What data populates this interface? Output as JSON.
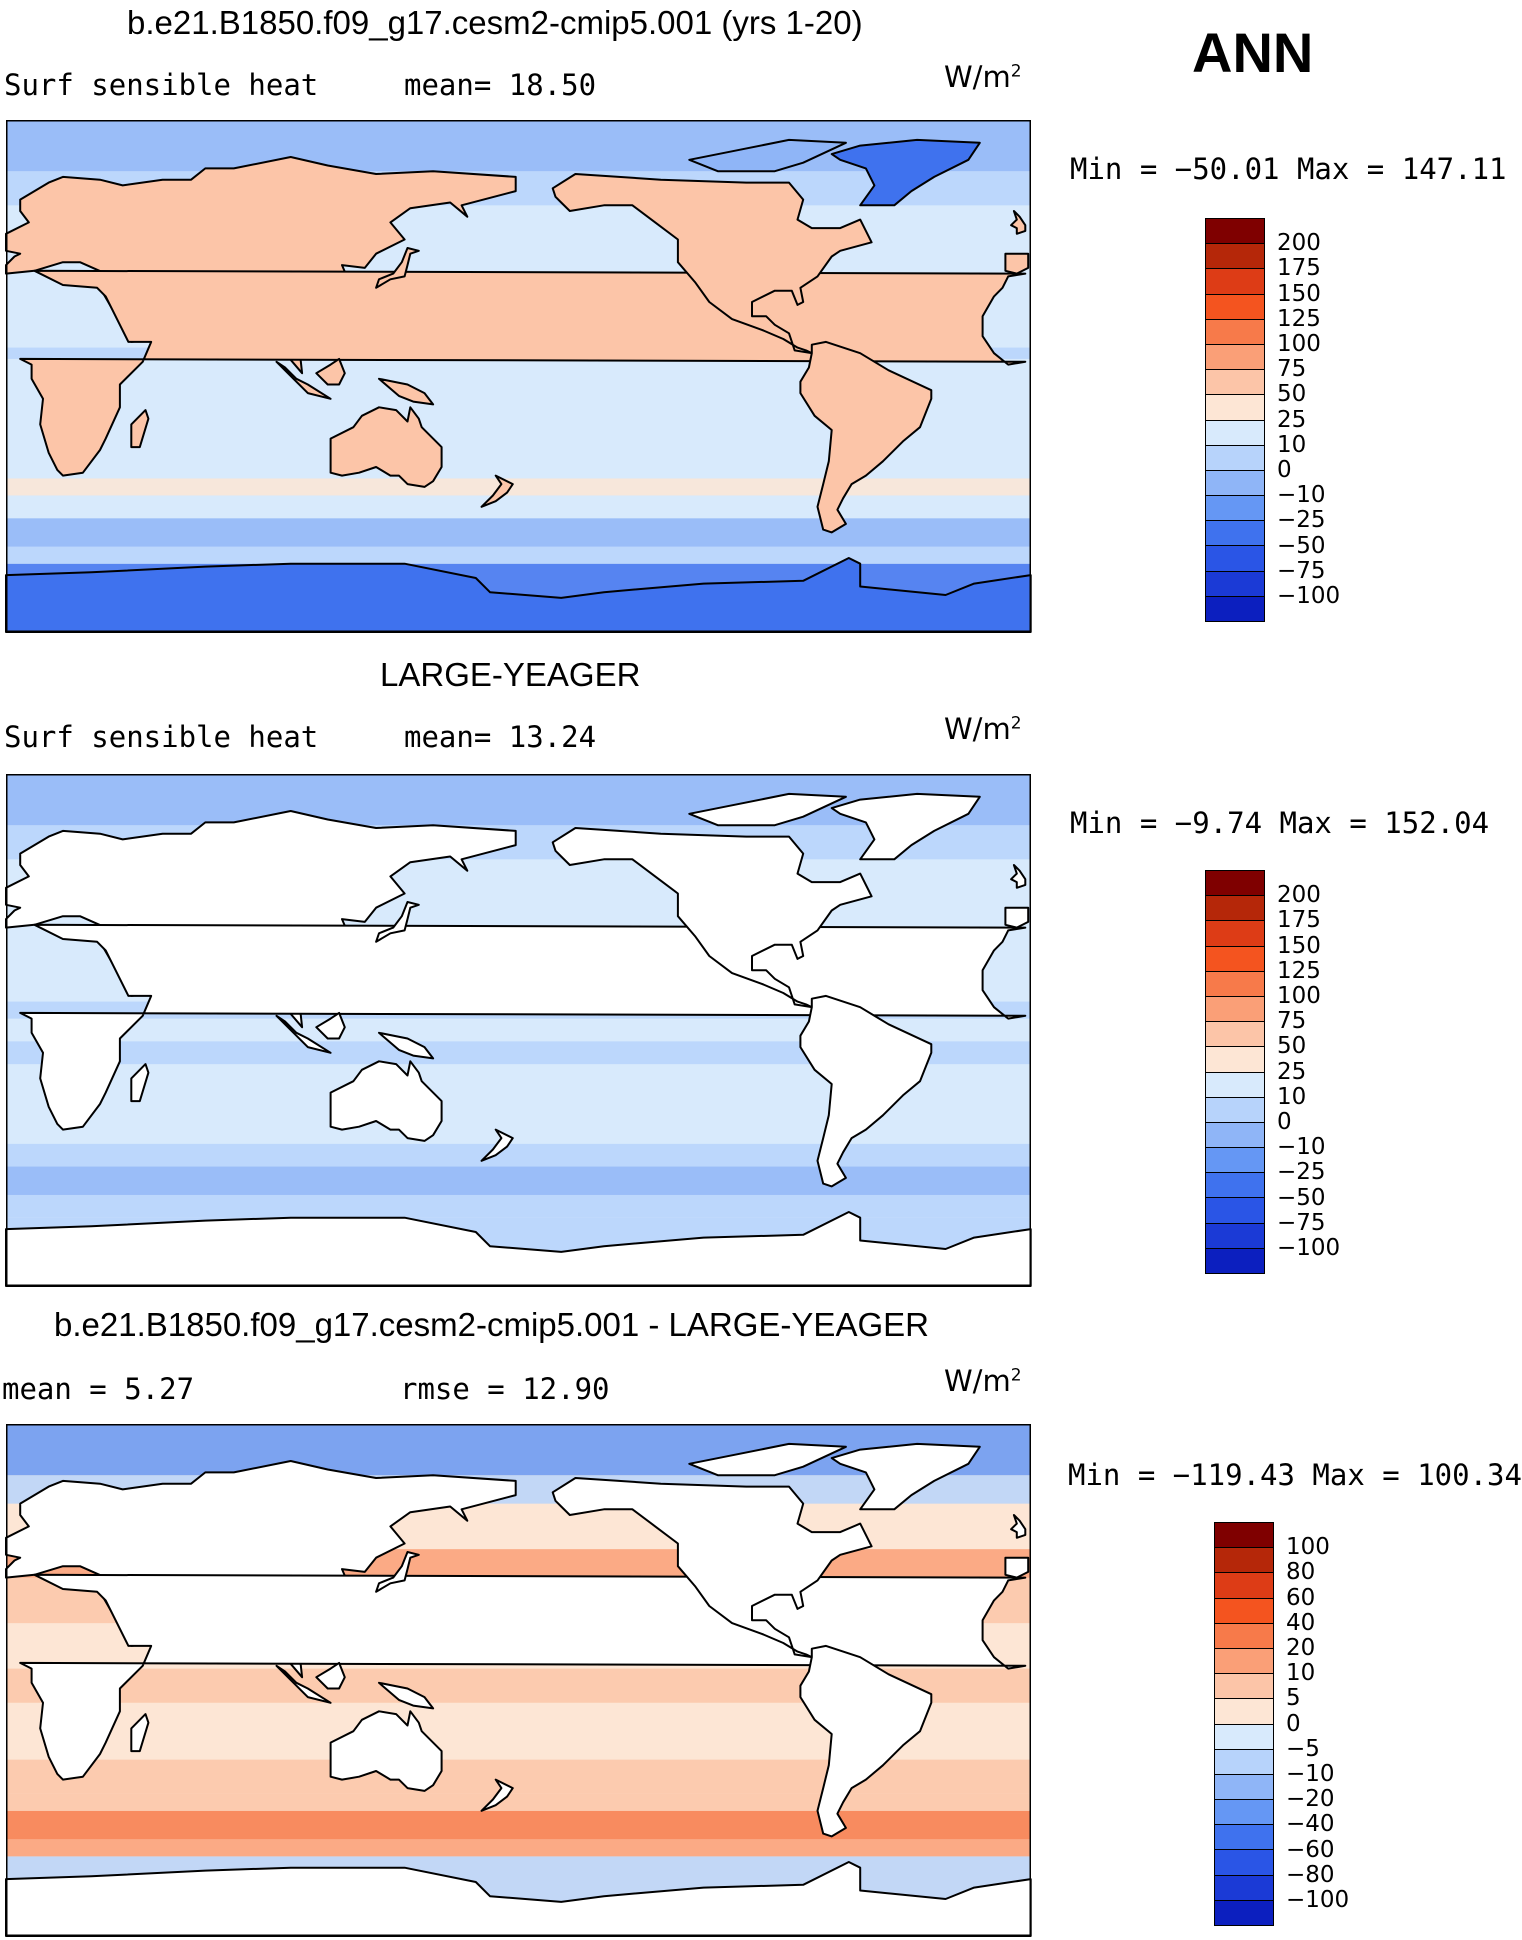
{
  "season": "ANN",
  "colors": {
    "pos": [
      "#7f0000",
      "#b52709",
      "#dd3c16",
      "#f4541f",
      "#f77a4a",
      "#fa9f77",
      "#fcc5a8",
      "#fde6d5"
    ],
    "neg": [
      "#d8eafc",
      "#b7d3fb",
      "#8fb5f7",
      "#6597f4",
      "#3f72ee",
      "#2a55e6",
      "#1b3ad6",
      "#0c1fbf",
      "#020f8c"
    ],
    "land": "#ffffff",
    "coast": "#000000"
  },
  "panels": [
    {
      "title": "b.e21.B1850.f09_g17.cesm2-cmip5.001 (yrs 1-20)",
      "stat_left": "Surf sensible heat",
      "stat_right": "mean=   18.50",
      "unit": "W/m",
      "unit_sup": "2",
      "minmax": "Min  =  −50.01  Max  =  147.11",
      "levels": [
        "200",
        "175",
        "150",
        "125",
        "100",
        "75",
        "50",
        "25",
        "10",
        "0",
        "−10",
        "−25",
        "−50",
        "−75",
        "−100"
      ],
      "land_filled": true
    },
    {
      "title": "LARGE-YEAGER",
      "stat_left": "Surf sensible heat",
      "stat_right": "mean=   13.24",
      "unit": "W/m",
      "unit_sup": "2",
      "minmax": "Min  =    −9.74  Max  =  152.04",
      "levels": [
        "200",
        "175",
        "150",
        "125",
        "100",
        "75",
        "50",
        "25",
        "10",
        "0",
        "−10",
        "−25",
        "−50",
        "−75",
        "−100"
      ],
      "land_filled": false
    },
    {
      "title": "b.e21.B1850.f09_g17.cesm2-cmip5.001 - LARGE-YEAGER",
      "stat_left": "mean  =     5.27",
      "stat_right": "rmse  =    12.90",
      "unit": "W/m",
      "unit_sup": "2",
      "minmax": "Min  =  −119.43  Max  =  100.34",
      "levels": [
        "100",
        "80",
        "60",
        "40",
        "20",
        "10",
        "5",
        "0",
        "−5",
        "−10",
        "−20",
        "−40",
        "−60",
        "−80",
        "−100"
      ],
      "land_filled": false
    }
  ]
}
